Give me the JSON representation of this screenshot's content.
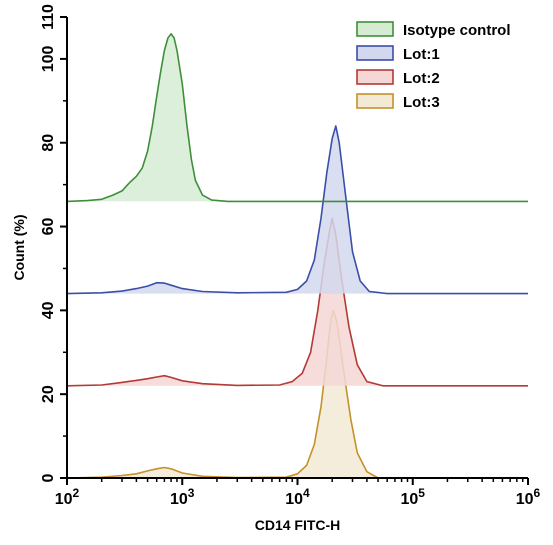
{
  "chart_data": {
    "type": "area",
    "xlabel": "CD14 FITC-H",
    "ylabel": "Count  (%)",
    "x_scale": "log10",
    "xlim": [
      100,
      1000000
    ],
    "ylim": [
      0,
      110
    ],
    "x_ticks": [
      {
        "value": 100,
        "base": "10",
        "exp": "2"
      },
      {
        "value": 1000,
        "base": "10",
        "exp": "3"
      },
      {
        "value": 10000,
        "base": "10",
        "exp": "4"
      },
      {
        "value": 100000,
        "base": "10",
        "exp": "5"
      },
      {
        "value": 1000000,
        "base": "10",
        "exp": "6"
      }
    ],
    "y_ticks": [
      "0",
      "20",
      "40",
      "60",
      "80",
      "100",
      "110"
    ],
    "legend_position": "top-right",
    "series": [
      {
        "name": "Isotype control",
        "line_color": "#3f8f3a",
        "fill_color": "#d5ecd3",
        "points": [
          [
            100,
            66
          ],
          [
            150,
            66.2
          ],
          [
            200,
            66.5
          ],
          [
            250,
            67.5
          ],
          [
            300,
            68.5
          ],
          [
            350,
            70.5
          ],
          [
            400,
            72
          ],
          [
            450,
            74
          ],
          [
            500,
            78
          ],
          [
            550,
            84
          ],
          [
            600,
            91
          ],
          [
            650,
            97
          ],
          [
            700,
            102
          ],
          [
            750,
            105
          ],
          [
            800,
            106
          ],
          [
            850,
            105
          ],
          [
            900,
            102
          ],
          [
            1000,
            94
          ],
          [
            1100,
            84
          ],
          [
            1200,
            76
          ],
          [
            1300,
            71
          ],
          [
            1500,
            67.5
          ],
          [
            1800,
            66.3
          ],
          [
            2500,
            66
          ],
          [
            1000000,
            66
          ]
        ]
      },
      {
        "name": "Lot:1",
        "line_color": "#3a4fa8",
        "fill_color": "#d3d8ef",
        "points": [
          [
            100,
            44
          ],
          [
            200,
            44.2
          ],
          [
            300,
            44.6
          ],
          [
            400,
            45.2
          ],
          [
            500,
            45.8
          ],
          [
            600,
            46.6
          ],
          [
            700,
            46.5
          ],
          [
            800,
            46
          ],
          [
            1000,
            45.2
          ],
          [
            1500,
            44.5
          ],
          [
            3000,
            44.2
          ],
          [
            8000,
            44.3
          ],
          [
            10000,
            45
          ],
          [
            12000,
            47
          ],
          [
            14000,
            52
          ],
          [
            16000,
            62
          ],
          [
            18000,
            73
          ],
          [
            20000,
            81
          ],
          [
            21500,
            84
          ],
          [
            23000,
            80
          ],
          [
            26000,
            68
          ],
          [
            30000,
            54
          ],
          [
            35000,
            47
          ],
          [
            42000,
            44.5
          ],
          [
            60000,
            44
          ],
          [
            1000000,
            44
          ]
        ]
      },
      {
        "name": "Lot:2",
        "line_color": "#b33a35",
        "fill_color": "#f5d7d6",
        "points": [
          [
            100,
            22
          ],
          [
            200,
            22.2
          ],
          [
            300,
            22.8
          ],
          [
            400,
            23.3
          ],
          [
            500,
            23.7
          ],
          [
            600,
            24.1
          ],
          [
            700,
            24.4
          ],
          [
            800,
            24
          ],
          [
            1000,
            23.2
          ],
          [
            1500,
            22.5
          ],
          [
            3000,
            22.1
          ],
          [
            7000,
            22.2
          ],
          [
            9000,
            23
          ],
          [
            11000,
            25
          ],
          [
            13000,
            30
          ],
          [
            15000,
            40
          ],
          [
            17000,
            51
          ],
          [
            19000,
            59
          ],
          [
            20000,
            62
          ],
          [
            21500,
            58
          ],
          [
            24000,
            48
          ],
          [
            28000,
            36
          ],
          [
            33000,
            27
          ],
          [
            40000,
            23
          ],
          [
            55000,
            22
          ],
          [
            1000000,
            22
          ]
        ]
      },
      {
        "name": "Lot:3",
        "line_color": "#c4912a",
        "fill_color": "#f3ead6",
        "points": [
          [
            100,
            0
          ],
          [
            200,
            0.2
          ],
          [
            300,
            0.6
          ],
          [
            400,
            1
          ],
          [
            500,
            1.7
          ],
          [
            600,
            2.2
          ],
          [
            700,
            2.5
          ],
          [
            800,
            2.2
          ],
          [
            1000,
            1.2
          ],
          [
            1500,
            0.4
          ],
          [
            3000,
            0.1
          ],
          [
            8000,
            0.2
          ],
          [
            10000,
            1
          ],
          [
            12000,
            3
          ],
          [
            14000,
            8
          ],
          [
            16000,
            17
          ],
          [
            18000,
            29
          ],
          [
            19500,
            38
          ],
          [
            20500,
            40
          ],
          [
            22000,
            37
          ],
          [
            25000,
            26
          ],
          [
            29000,
            14
          ],
          [
            33000,
            6
          ],
          [
            40000,
            1.5
          ],
          [
            50000,
            0
          ],
          [
            1000000,
            0
          ]
        ]
      }
    ]
  }
}
